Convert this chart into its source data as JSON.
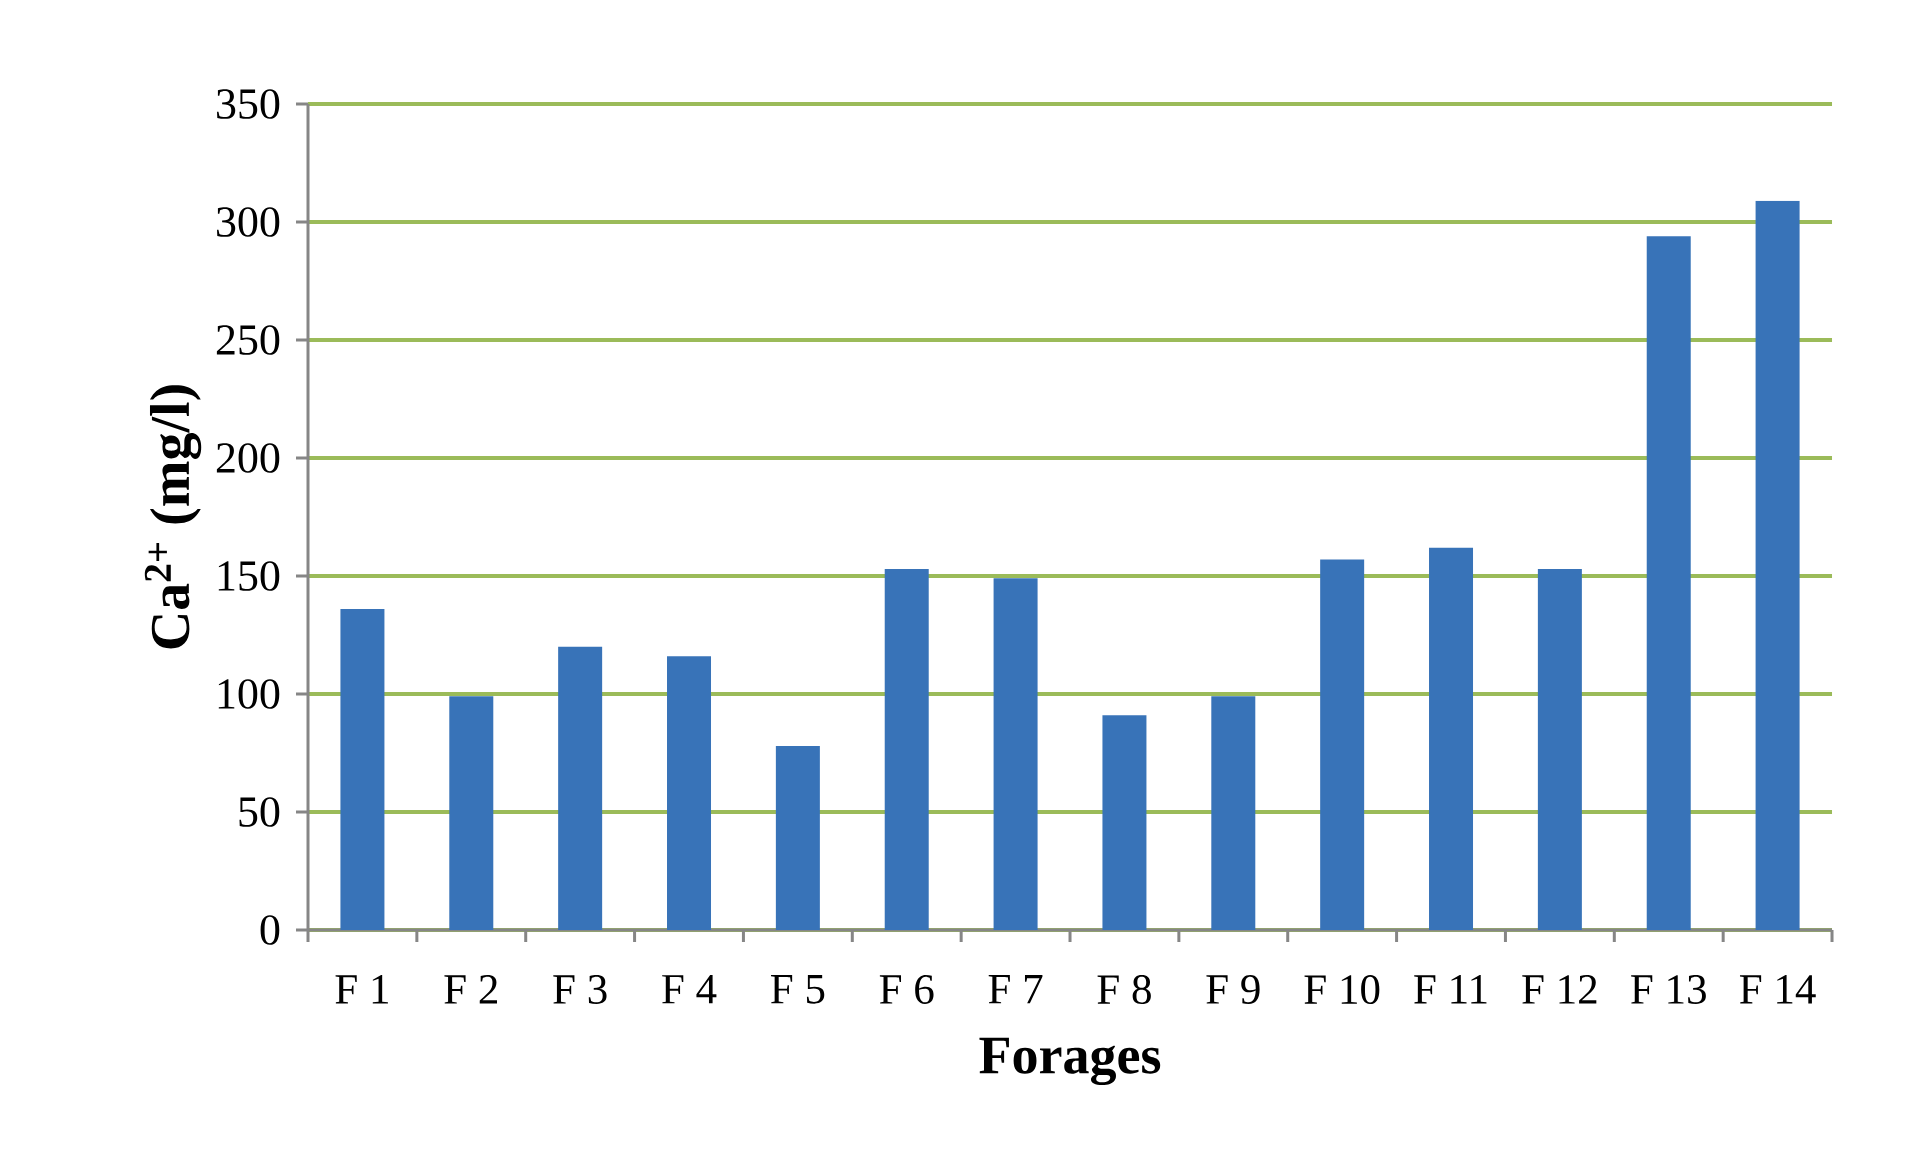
{
  "chart_data": {
    "type": "bar",
    "xlabel": "Forages",
    "ylabel": "Ca$^{2+}$ (mg/l)",
    "categories": [
      "F 1",
      "F 2",
      "F 3",
      "F 4",
      "F 5",
      "F 6",
      "F 7",
      "F 8",
      "F 9",
      "F 10",
      "F 11",
      "F 12",
      "F 13",
      "F 14"
    ],
    "values": [
      136,
      99,
      120,
      116,
      78,
      153,
      149,
      91,
      99,
      157,
      162,
      153,
      294,
      309
    ],
    "color": "#3873b8",
    "ylim": [
      0,
      350
    ],
    "yticks": [
      0,
      50,
      100,
      150,
      200,
      250,
      300,
      350
    ],
    "grid": "y"
  }
}
